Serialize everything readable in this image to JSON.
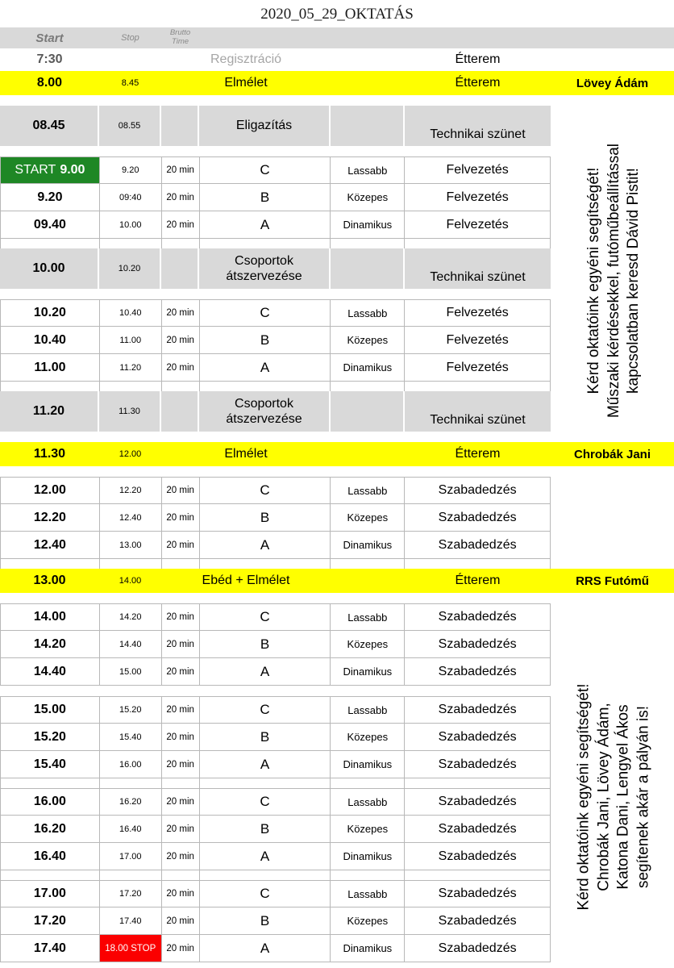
{
  "title": "2020_05_29_OKTATÁS",
  "colors": {
    "yellow": "#ffff00",
    "band": "#d9d9d9",
    "green": "#1e8725",
    "red": "#fb0000",
    "border": "#b8b8b8"
  },
  "side_notes": [
    {
      "lines": [
        "Kérd oktatóink egyéni segítségét!",
        "Műszaki kérdésekkel, futóműbeállítással",
        "kapcsolatban keresd Dávid Pistit!"
      ]
    },
    {
      "lines": [
        "Kérd oktatóink egyéni segítségét!",
        "Chrobák Jani, Lövey Ádám,",
        "Katona Dani, Lengyel Ákos",
        "segítenek akár a pályán is!"
      ]
    }
  ],
  "rows": [
    {
      "type": "header",
      "start": "Start",
      "stop": "Stop",
      "brutto": "Brutto Time"
    },
    {
      "type": "registration",
      "start": "7:30",
      "label": "Regisztráció",
      "place": "Étterem"
    },
    {
      "type": "yellow",
      "start": "8.00",
      "stop": "8.45",
      "label": "Elmélet",
      "place": "Étterem",
      "name": "Lövey Ádám"
    },
    {
      "type": "gap"
    },
    {
      "type": "grayband",
      "start": "08.45",
      "stop": "08.55",
      "label": "Eligazítás",
      "note": "Technikai szünet"
    },
    {
      "type": "gap"
    },
    {
      "type": "session",
      "start_prefix": "START",
      "start": "9.00",
      "stop": "9.20",
      "brutto": "20 min",
      "group": "C",
      "pace": "Lassabb",
      "activity": "Felvezetés",
      "green": true
    },
    {
      "type": "session",
      "start": "9.20",
      "stop": "09:40",
      "brutto": "20 min",
      "group": "B",
      "pace": "Közepes",
      "activity": "Felvezetés"
    },
    {
      "type": "session",
      "start": "09.40",
      "stop": "10.00",
      "brutto": "20 min",
      "group": "A",
      "pace": "Dinamikus",
      "activity": "Felvezetés"
    },
    {
      "type": "gap_bordered"
    },
    {
      "type": "grayband",
      "start": "10.00",
      "stop": "10.20",
      "label": "Csoportok átszervezése",
      "note": "Technikai szünet"
    },
    {
      "type": "gap"
    },
    {
      "type": "session",
      "start": "10.20",
      "stop": "10.40",
      "brutto": "20 min",
      "group": "C",
      "pace": "Lassabb",
      "activity": "Felvezetés"
    },
    {
      "type": "session",
      "start": "10.40",
      "stop": "11.00",
      "brutto": "20 min",
      "group": "B",
      "pace": "Közepes",
      "activity": "Felvezetés"
    },
    {
      "type": "session",
      "start": "11.00",
      "stop": "11.20",
      "brutto": "20 min",
      "group": "A",
      "pace": "Dinamikus",
      "activity": "Felvezetés"
    },
    {
      "type": "gap_bordered"
    },
    {
      "type": "grayband",
      "start": "11.20",
      "stop": "11.30",
      "label": "Csoportok átszervezése",
      "note": "Technikai szünet"
    },
    {
      "type": "gap"
    },
    {
      "type": "yellow",
      "start": "11.30",
      "stop": "12.00",
      "label": "Elmélet",
      "place": "Étterem",
      "name": "Chrobák Jani"
    },
    {
      "type": "gap"
    },
    {
      "type": "session",
      "start": "12.00",
      "stop": "12.20",
      "brutto": "20 min",
      "group": "C",
      "pace": "Lassabb",
      "activity": "Szabadedzés"
    },
    {
      "type": "session",
      "start": "12.20",
      "stop": "12.40",
      "brutto": "20 min",
      "group": "B",
      "pace": "Közepes",
      "activity": "Szabadedzés"
    },
    {
      "type": "session",
      "start": "12.40",
      "stop": "13.00",
      "brutto": "20 min",
      "group": "A",
      "pace": "Dinamikus",
      "activity": "Szabadedzés"
    },
    {
      "type": "gap_bordered"
    },
    {
      "type": "yellow",
      "start": "13.00",
      "stop": "14.00",
      "label": "Ebéd + Elmélet",
      "place": "Étterem",
      "name": "RRS Futómű"
    },
    {
      "type": "gap"
    },
    {
      "type": "session",
      "start": "14.00",
      "stop": "14.20",
      "brutto": "20 min",
      "group": "C",
      "pace": "Lassabb",
      "activity": "Szabadedzés"
    },
    {
      "type": "session",
      "start": "14.20",
      "stop": "14.40",
      "brutto": "20 min",
      "group": "B",
      "pace": "Közepes",
      "activity": "Szabadedzés"
    },
    {
      "type": "session",
      "start": "14.40",
      "stop": "15.00",
      "brutto": "20 min",
      "group": "A",
      "pace": "Dinamikus",
      "activity": "Szabadedzés"
    },
    {
      "type": "gap"
    },
    {
      "type": "session",
      "start": "15.00",
      "stop": "15.20",
      "brutto": "20 min",
      "group": "C",
      "pace": "Lassabb",
      "activity": "Szabadedzés"
    },
    {
      "type": "session",
      "start": "15.20",
      "stop": "15.40",
      "brutto": "20 min",
      "group": "B",
      "pace": "Közepes",
      "activity": "Szabadedzés"
    },
    {
      "type": "session",
      "start": "15.40",
      "stop": "16.00",
      "brutto": "20 min",
      "group": "A",
      "pace": "Dinamikus",
      "activity": "Szabadedzés"
    },
    {
      "type": "gap_bordered"
    },
    {
      "type": "session",
      "start": "16.00",
      "stop": "16.20",
      "brutto": "20 min",
      "group": "C",
      "pace": "Lassabb",
      "activity": "Szabadedzés"
    },
    {
      "type": "session",
      "start": "16.20",
      "stop": "16.40",
      "brutto": "20 min",
      "group": "B",
      "pace": "Közepes",
      "activity": "Szabadedzés"
    },
    {
      "type": "session",
      "start": "16.40",
      "stop": "17.00",
      "brutto": "20 min",
      "group": "A",
      "pace": "Dinamikus",
      "activity": "Szabadedzés"
    },
    {
      "type": "gap_bordered"
    },
    {
      "type": "session",
      "start": "17.00",
      "stop": "17.20",
      "brutto": "20 min",
      "group": "C",
      "pace": "Lassabb",
      "activity": "Szabadedzés"
    },
    {
      "type": "session",
      "start": "17.20",
      "stop": "17.40",
      "brutto": "20 min",
      "group": "B",
      "pace": "Közepes",
      "activity": "Szabadedzés"
    },
    {
      "type": "session",
      "start": "17.40",
      "stop": "18.00 STOP",
      "brutto": "20 min",
      "group": "A",
      "pace": "Dinamikus",
      "activity": "Szabadedzés",
      "red": true
    }
  ]
}
